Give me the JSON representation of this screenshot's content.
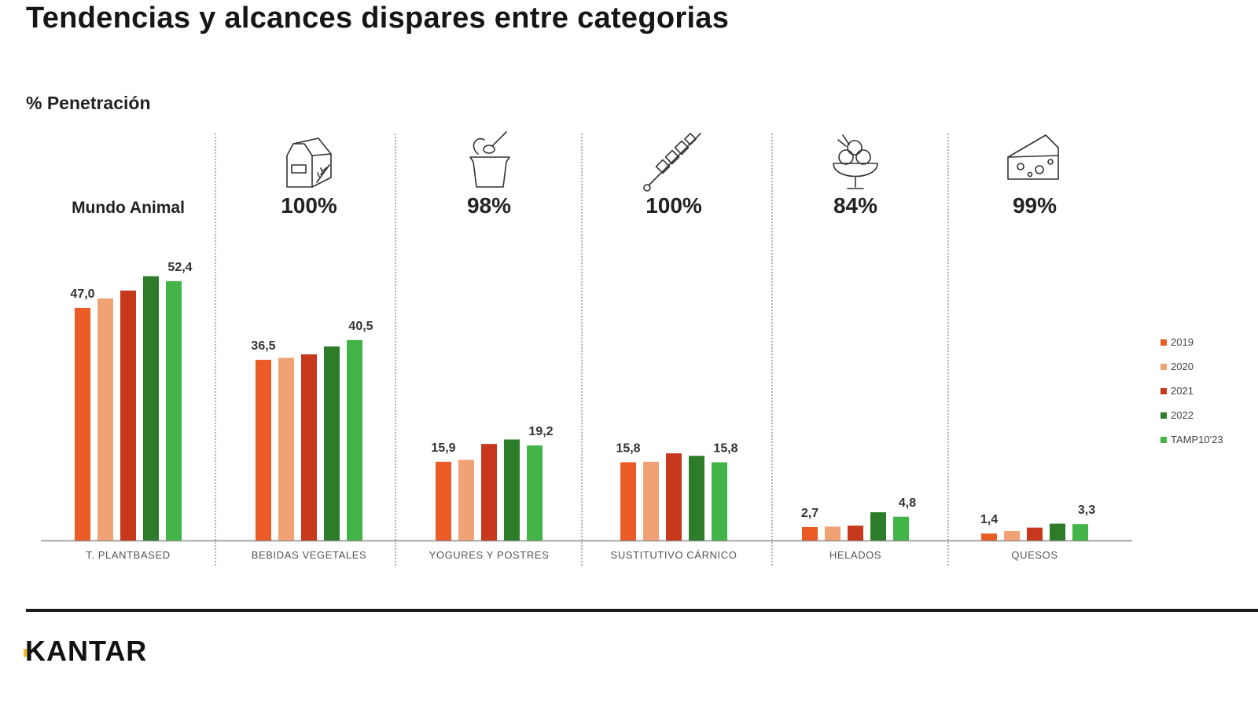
{
  "title": "Tendencias y alcances dispares entre categorias",
  "subtitle": "% Penetración",
  "brand": "KANTAR",
  "colors": {
    "2019": "#ea5b26",
    "2020": "#f0a275",
    "2021": "#c8381d",
    "2022": "#2d7c2a",
    "TAMP10'23": "#43b548"
  },
  "icons": [
    "",
    "milk-carton-icon",
    "yogurt-cup-icon",
    "skewer-icon",
    "ice-cream-bowl-icon",
    "cheese-icon"
  ],
  "chart_data": {
    "type": "bar",
    "ylabel": "% Penetración",
    "ylim": [
      0,
      60
    ],
    "grid": false,
    "legend_position": "right",
    "categories": [
      "T. PLANTBASED",
      "BEBIDAS VEGETALES",
      "YOGURES  Y POSTRES",
      "SUSTITUTIVO CÁRNICO",
      "HELADOS",
      "QUESOS"
    ],
    "headers": [
      "Mundo Animal",
      "100%",
      "98%",
      "100%",
      "84%",
      "99%"
    ],
    "series": [
      {
        "name": "2019",
        "values": [
          47.0,
          36.5,
          15.9,
          15.8,
          2.7,
          1.4
        ]
      },
      {
        "name": "2020",
        "values": [
          48.9,
          36.9,
          16.3,
          15.9,
          2.8,
          1.9
        ]
      },
      {
        "name": "2021",
        "values": [
          50.5,
          37.6,
          19.5,
          17.6,
          3.0,
          2.6
        ]
      },
      {
        "name": "2022",
        "values": [
          53.4,
          39.2,
          20.4,
          17.1,
          5.7,
          3.4
        ]
      },
      {
        "name": "TAMP10'23",
        "values": [
          52.4,
          40.5,
          19.2,
          15.8,
          4.8,
          3.3
        ]
      }
    ],
    "data_labels": [
      {
        "category": 0,
        "series": 0,
        "text": "47,0"
      },
      {
        "category": 0,
        "series": 4,
        "text": "52,4"
      },
      {
        "category": 1,
        "series": 0,
        "text": "36,5"
      },
      {
        "category": 1,
        "series": 4,
        "text": "40,5"
      },
      {
        "category": 2,
        "series": 0,
        "text": "15,9"
      },
      {
        "category": 2,
        "series": 4,
        "text": "19,2"
      },
      {
        "category": 3,
        "series": 0,
        "text": "15,8"
      },
      {
        "category": 3,
        "series": 4,
        "text": "15,8"
      },
      {
        "category": 4,
        "series": 0,
        "text": "2,7"
      },
      {
        "category": 4,
        "series": 4,
        "text": "4,8"
      },
      {
        "category": 5,
        "series": 0,
        "text": "1,4"
      },
      {
        "category": 5,
        "series": 4,
        "text": "3,3"
      }
    ]
  }
}
